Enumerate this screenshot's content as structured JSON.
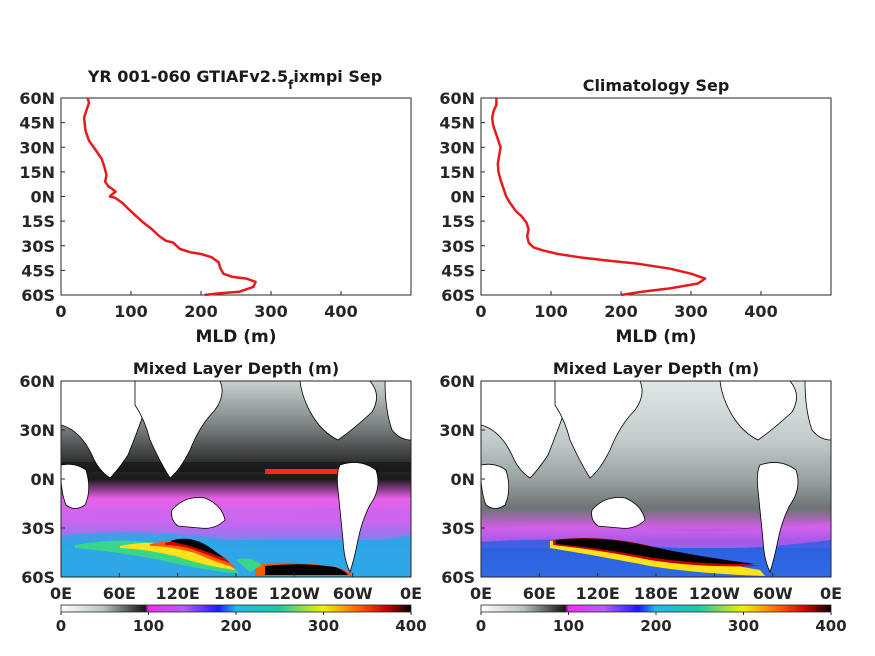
{
  "chart_data": [
    {
      "id": "profile_model",
      "type": "line",
      "title_main": "YR 001-060 GTIAFv2.5",
      "title_sub": "f",
      "title_tail": "ixmpi Sep",
      "xlabel": "MLD (m)",
      "ylabel": "",
      "xlim": [
        0,
        500
      ],
      "ylim": [
        -60,
        60
      ],
      "xticks": [
        "0",
        "100",
        "200",
        "300",
        "400"
      ],
      "yticks": [
        "60N",
        "45N",
        "30N",
        "15N",
        "0N",
        "15S",
        "30S",
        "45S",
        "60S"
      ],
      "series": [
        {
          "color": "#e8191b",
          "x": [
            38,
            40,
            36,
            33,
            34,
            35,
            40,
            50,
            58,
            62,
            65,
            63,
            68,
            72,
            78,
            72,
            70,
            78,
            88,
            95,
            105,
            118,
            130,
            140,
            150,
            160,
            165,
            170,
            185,
            200,
            215,
            225,
            228,
            232,
            245,
            265,
            278,
            275,
            255,
            225,
            205
          ],
          "y": [
            60,
            57,
            52,
            48,
            44,
            40,
            34,
            28,
            23,
            18,
            13,
            9,
            6,
            5,
            3,
            1,
            0,
            -1,
            -4,
            -7,
            -11,
            -16,
            -20,
            -24,
            -27,
            -28,
            -30,
            -32,
            -34,
            -35,
            -37,
            -40,
            -44,
            -47,
            -49,
            -50,
            -52,
            -55,
            -58,
            -59,
            -60
          ]
        }
      ]
    },
    {
      "id": "profile_clim",
      "type": "line",
      "title": "Climatology Sep",
      "xlabel": "MLD (m)",
      "ylabel": "",
      "xlim": [
        0,
        500
      ],
      "ylim": [
        -60,
        60
      ],
      "xticks": [
        "0",
        "100",
        "200",
        "300",
        "400"
      ],
      "yticks": [
        "60N",
        "45N",
        "30N",
        "15N",
        "0N",
        "15S",
        "30S",
        "45S",
        "60S"
      ],
      "series": [
        {
          "color": "#e8191b",
          "x": [
            22,
            22,
            18,
            16,
            17,
            20,
            24,
            28,
            26,
            24,
            25,
            28,
            32,
            36,
            40,
            45,
            50,
            58,
            65,
            68,
            66,
            68,
            75,
            90,
            110,
            140,
            180,
            225,
            270,
            300,
            320,
            310,
            270,
            230,
            200
          ],
          "y": [
            60,
            56,
            52,
            48,
            44,
            40,
            35,
            30,
            25,
            20,
            15,
            10,
            5,
            0,
            -3,
            -6,
            -9,
            -12,
            -16,
            -20,
            -24,
            -28,
            -31,
            -33,
            -35,
            -37,
            -39,
            -41,
            -44,
            -47,
            -50,
            -53,
            -56,
            -58,
            -60
          ]
        }
      ]
    },
    {
      "id": "map_model",
      "type": "heatmap",
      "title": "Mixed Layer Depth (m)",
      "xticks": [
        "0E",
        "60E",
        "120E",
        "180E",
        "120W",
        "60W",
        "0E"
      ],
      "yticks": [
        "60N",
        "30N",
        "0N",
        "30S",
        "60S"
      ],
      "colorbar_ticks": [
        "0",
        "100",
        "200",
        "300",
        "400"
      ],
      "clim": [
        0,
        400
      ]
    },
    {
      "id": "map_clim",
      "type": "heatmap",
      "title": "Mixed Layer Depth (m)",
      "xticks": [
        "0E",
        "60E",
        "120E",
        "180E",
        "120W",
        "60W",
        "0E"
      ],
      "yticks": [
        "60N",
        "30N",
        "0N",
        "30S",
        "60S"
      ],
      "colorbar_ticks": [
        "0",
        "100",
        "200",
        "300",
        "400"
      ],
      "clim": [
        0,
        400
      ]
    }
  ],
  "colors": {
    "line": "#e8191b",
    "land": "#ffffff",
    "coast": "#000000",
    "axis": "#262626"
  }
}
